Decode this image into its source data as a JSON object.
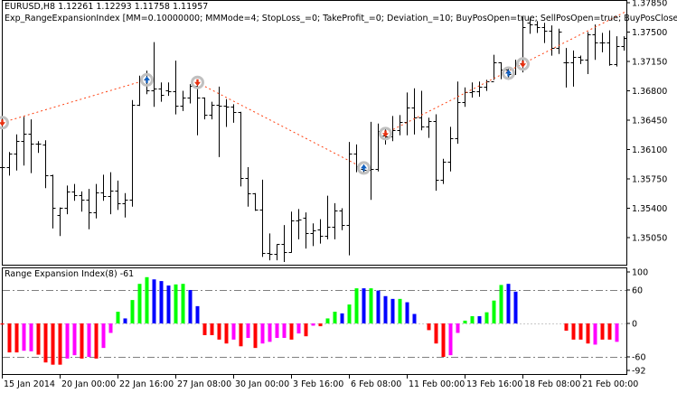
{
  "header": {
    "symbol_line": "EURUSD,H8  1.12261 1.12293 1.11758 1.11957",
    "expert_line": "Exp_RangeExpansionIndex [MM=0.10000000; MMMode=4; StopLoss_=0; TakeProfit_=0; Deviation_=10; BuyPosOpen=true; SellPosOpen=true; BuyPosClose=true;"
  },
  "indicator": {
    "label": "Range Expansion Index(8) -61"
  },
  "colors": {
    "up_rising": "#00ff00",
    "up_falling": "#0000ff",
    "down_falling": "#ff0000",
    "down_rising": "#ff00ff",
    "trade_line": "#ff4010",
    "buy_arrow": "#1060c0",
    "sell_arrow": "#e83010",
    "marker_ring": "#c0c0c0"
  },
  "chart_data": [
    {
      "type": "ohlc",
      "ylim": [
        1.347,
        1.3788
      ],
      "y_ticks": [
        "1.37850",
        "1.37500",
        "1.37150",
        "1.36800",
        "1.36450",
        "1.36100",
        "1.35750",
        "1.35400",
        "1.35050"
      ],
      "bars_ohlc": [
        [
          1.3589,
          1.36,
          1.3583,
          1.3589
        ],
        [
          1.3589,
          1.3607,
          1.358,
          1.3605
        ],
        [
          1.3605,
          1.3628,
          1.3586,
          1.362
        ],
        [
          1.362,
          1.3649,
          1.3592,
          1.3629
        ],
        [
          1.3629,
          1.3646,
          1.3583,
          1.3617
        ],
        [
          1.3617,
          1.362,
          1.3607,
          1.3617
        ],
        [
          1.3616,
          1.3621,
          1.3565,
          1.3579
        ],
        [
          1.3579,
          1.358,
          1.3517,
          1.3541
        ],
        [
          1.3532,
          1.3541,
          1.3508,
          1.3541
        ],
        [
          1.3541,
          1.3567,
          1.3534,
          1.356
        ],
        [
          1.356,
          1.3569,
          1.355,
          1.3556
        ],
        [
          1.3556,
          1.356,
          1.3537,
          1.355
        ],
        [
          1.355,
          1.3563,
          1.3516,
          1.3535
        ],
        [
          1.3535,
          1.3569,
          1.3529,
          1.3559
        ],
        [
          1.3559,
          1.358,
          1.355,
          1.3555
        ],
        [
          1.3555,
          1.3583,
          1.3534,
          1.3561
        ],
        [
          1.3561,
          1.3573,
          1.3539,
          1.3546
        ],
        [
          1.3546,
          1.3558,
          1.353,
          1.355
        ],
        [
          1.355,
          1.3669,
          1.3543,
          1.3663
        ],
        [
          1.3663,
          1.3698,
          1.3663,
          1.3693
        ],
        [
          1.3693,
          1.3704,
          1.3677,
          1.3681
        ],
        [
          1.3681,
          1.3738,
          1.3662,
          1.3683
        ],
        [
          1.3683,
          1.369,
          1.3668,
          1.3675
        ],
        [
          1.368,
          1.369,
          1.3675,
          1.3679
        ],
        [
          1.3679,
          1.3716,
          1.3653,
          1.3662
        ],
        [
          1.3662,
          1.368,
          1.3657,
          1.3672
        ],
        [
          1.3672,
          1.3688,
          1.3666,
          1.3686
        ],
        [
          1.3686,
          1.3693,
          1.3628,
          1.3672
        ],
        [
          1.3672,
          1.3672,
          1.3647,
          1.3651
        ],
        [
          1.3652,
          1.3667,
          1.3647,
          1.3663
        ],
        [
          1.3663,
          1.3685,
          1.3602,
          1.3662
        ],
        [
          1.3662,
          1.367,
          1.3638,
          1.3661
        ],
        [
          1.3661,
          1.3664,
          1.3643,
          1.3655
        ],
        [
          1.3655,
          1.3655,
          1.3567,
          1.3576
        ],
        [
          1.3576,
          1.3589,
          1.3543,
          1.3558
        ],
        [
          1.3558,
          1.3558,
          1.3538,
          1.3538
        ],
        [
          1.3538,
          1.3574,
          1.3483,
          1.3487
        ],
        [
          1.3487,
          1.351,
          1.3479,
          1.3486
        ],
        [
          1.3486,
          1.3497,
          1.3479,
          1.3497
        ],
        [
          1.3497,
          1.352,
          1.3477,
          1.3488
        ],
        [
          1.3488,
          1.3536,
          1.3488,
          1.3526
        ],
        [
          1.3526,
          1.3539,
          1.3504,
          1.3527
        ],
        [
          1.3529,
          1.3535,
          1.3493,
          1.351
        ],
        [
          1.351,
          1.3522,
          1.3496,
          1.3514
        ],
        [
          1.3515,
          1.3527,
          1.3499,
          1.3507
        ],
        [
          1.3507,
          1.3555,
          1.3504,
          1.3518
        ],
        [
          1.3518,
          1.3546,
          1.3504,
          1.3537
        ],
        [
          1.3537,
          1.354,
          1.3515,
          1.352
        ],
        [
          1.352,
          1.3619,
          1.3485,
          1.3605
        ],
        [
          1.3605,
          1.3616,
          1.3584,
          1.359
        ],
        [
          1.3587,
          1.3592,
          1.3582,
          1.3586
        ],
        [
          1.3586,
          1.3643,
          1.3551,
          1.3587
        ],
        [
          1.3587,
          1.3641,
          1.3585,
          1.3632
        ],
        [
          1.3627,
          1.3634,
          1.3617,
          1.3626
        ],
        [
          1.3626,
          1.365,
          1.3621,
          1.3633
        ],
        [
          1.3633,
          1.3651,
          1.3628,
          1.3643
        ],
        [
          1.3643,
          1.3678,
          1.3628,
          1.366
        ],
        [
          1.366,
          1.3683,
          1.3629,
          1.3648
        ],
        [
          1.3648,
          1.368,
          1.3634,
          1.3637
        ],
        [
          1.3637,
          1.3648,
          1.3625,
          1.3644
        ],
        [
          1.3644,
          1.3652,
          1.3562,
          1.3574
        ],
        [
          1.3574,
          1.3599,
          1.357,
          1.3595
        ],
        [
          1.3595,
          1.3637,
          1.3585,
          1.3623
        ],
        [
          1.3623,
          1.3691,
          1.3618,
          1.3667
        ],
        [
          1.3667,
          1.3684,
          1.3662,
          1.3678
        ],
        [
          1.3678,
          1.369,
          1.3673,
          1.3679
        ],
        [
          1.3679,
          1.3691,
          1.3674,
          1.3685
        ],
        [
          1.3685,
          1.3693,
          1.3681,
          1.3691
        ],
        [
          1.3691,
          1.3723,
          1.3694,
          1.3714
        ],
        [
          1.3714,
          1.3714,
          1.3695,
          1.3705
        ],
        [
          1.3705,
          1.3707,
          1.3694,
          1.37
        ],
        [
          1.37,
          1.3717,
          1.37,
          1.3713
        ],
        [
          1.3713,
          1.3768,
          1.3703,
          1.3756
        ],
        [
          1.3761,
          1.3767,
          1.3749,
          1.3759
        ],
        [
          1.3759,
          1.3763,
          1.375,
          1.3756
        ],
        [
          1.3756,
          1.3761,
          1.3738,
          1.3752
        ],
        [
          1.3752,
          1.3758,
          1.3723,
          1.3731
        ],
        [
          1.3731,
          1.3754,
          1.3725,
          1.3751
        ],
        [
          1.3714,
          1.3731,
          1.3685,
          1.3714
        ],
        [
          1.3714,
          1.3728,
          1.3686,
          1.372
        ],
        [
          1.372,
          1.3722,
          1.3713,
          1.3717
        ],
        [
          1.3717,
          1.375,
          1.3701,
          1.3747
        ],
        [
          1.3747,
          1.3759,
          1.3718,
          1.3738
        ],
        [
          1.3738,
          1.3749,
          1.3727,
          1.3738
        ],
        [
          1.3738,
          1.3752,
          1.3711,
          1.3712
        ],
        [
          1.3712,
          1.3745,
          1.371,
          1.3733
        ],
        [
          1.3733,
          1.3745,
          1.3729,
          1.3743
        ]
      ],
      "trades": [
        {
          "bar": 0,
          "price": 1.3642,
          "side": "sell"
        },
        {
          "bar": 20,
          "price": 1.3693,
          "side": "buy"
        },
        {
          "bar": 27,
          "price": 1.369,
          "side": "sell"
        },
        {
          "bar": 50,
          "price": 1.3588,
          "side": "buy"
        },
        {
          "bar": 53,
          "price": 1.3629,
          "side": "sell"
        },
        {
          "bar": 70,
          "price": 1.3701,
          "side": "buy"
        },
        {
          "bar": 72,
          "price": 1.3712,
          "side": "sell"
        }
      ],
      "trade_lines": [
        [
          0,
          1
        ],
        [
          2,
          3
        ],
        [
          4,
          6
        ]
      ]
    },
    {
      "type": "bar",
      "title": "Range Expansion Index(8) -61",
      "ylim": [
        -92,
        100
      ],
      "levels": [
        60,
        0,
        -60
      ],
      "y_ticks": [
        "100",
        "60",
        "0",
        "-60",
        "-92"
      ],
      "values": [
        -2,
        -52,
        -52,
        -49,
        -50,
        -56,
        -70,
        -74,
        -74,
        -63,
        -57,
        -63,
        -60,
        -63,
        -44,
        -17,
        21,
        9,
        42,
        71,
        83,
        79,
        76,
        68,
        70,
        71,
        60,
        31,
        -21,
        -21,
        -29,
        -36,
        -29,
        -41,
        -26,
        -44,
        -36,
        -33,
        -26,
        -26,
        -29,
        -18,
        -23,
        -4,
        -5,
        9,
        21,
        18,
        34,
        63,
        63,
        63,
        59,
        49,
        44,
        44,
        38,
        17,
        0,
        -12,
        -36,
        -60,
        -57,
        -17,
        5,
        13,
        13,
        20,
        41,
        69,
        71,
        57,
        21,
        0,
        0,
        0,
        0,
        0,
        -13,
        -29,
        -29,
        -36,
        -38,
        -29,
        -29,
        -33,
        -21
      ],
      "bar_colors": "rrrmmrrrrmmrmrmmgbgggbbbggbbrrrrmrmrmmmmrmrmrggbggbgbbbgbbxrrrmmggbgggbbxxxxxrrrrrmrrm"
    }
  ],
  "x_axis": {
    "labels": [
      "15 Jan 2014",
      "20 Jan 00:00",
      "22 Jan 16:00",
      "27 Jan 08:00",
      "30 Jan 00:00",
      "3 Feb 16:00",
      "6 Feb 08:00",
      "11 Feb 00:00",
      "13 Feb 16:00",
      "18 Feb 08:00",
      "21 Feb 00:00"
    ]
  }
}
